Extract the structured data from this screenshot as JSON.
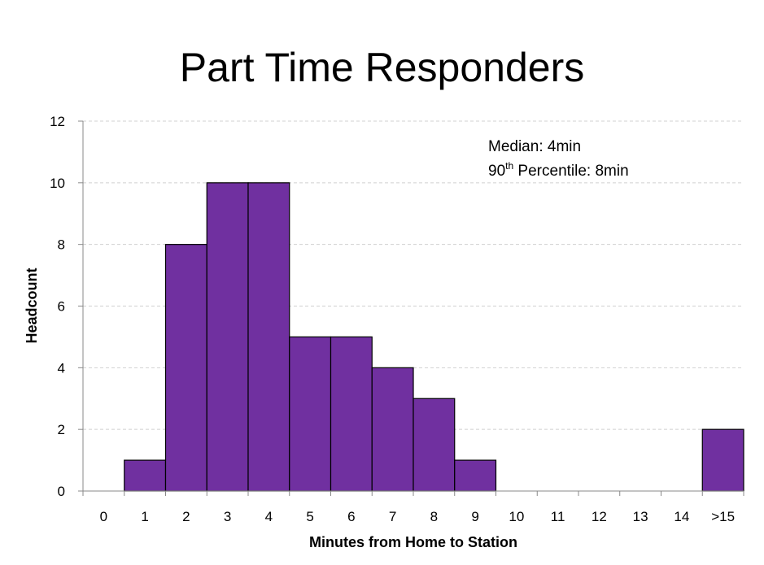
{
  "chart_data": {
    "type": "bar",
    "title": "Part Time Responders",
    "xlabel": "Minutes from Home to Station",
    "ylabel": "Headcount",
    "categories": [
      "0",
      "1",
      "2",
      "3",
      "4",
      "5",
      "6",
      "7",
      "8",
      "9",
      "10",
      "11",
      "12",
      "13",
      "14",
      ">15"
    ],
    "values": [
      0,
      1,
      8,
      10,
      10,
      5,
      5,
      4,
      3,
      1,
      0,
      0,
      0,
      0,
      0,
      2
    ],
    "ylim": [
      0,
      12
    ],
    "yticks": [
      0,
      2,
      4,
      6,
      8,
      10,
      12
    ],
    "grid": true,
    "bar_color": "#7030a0",
    "annotations": {
      "median": "Median: 4min",
      "percentile_number": "90",
      "percentile_sup": "th",
      "percentile_rest": " Percentile: 8min"
    }
  }
}
